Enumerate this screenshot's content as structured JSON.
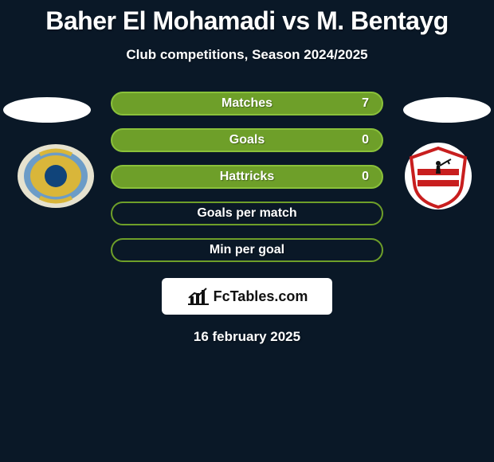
{
  "title": "Baher El Mohamadi vs M. Bentayg",
  "subtitle": "Club competitions, Season 2024/2025",
  "date": "16 february 2025",
  "watermark": {
    "text": "FcTables.com"
  },
  "colors": {
    "fill_right": "#6e9f29",
    "border_right": "#8ac13a",
    "bg_empty": "#0a1827",
    "border_empty": "#6e9f29"
  },
  "stats": [
    {
      "label": "Matches",
      "value_right": "7",
      "fill_right_pct": 100,
      "show_empty_style": false
    },
    {
      "label": "Goals",
      "value_right": "0",
      "fill_right_pct": 100,
      "show_empty_style": false
    },
    {
      "label": "Hattricks",
      "value_right": "0",
      "fill_right_pct": 100,
      "show_empty_style": false
    },
    {
      "label": "Goals per match",
      "value_right": "",
      "fill_right_pct": 0,
      "show_empty_style": true
    },
    {
      "label": "Min per goal",
      "value_right": "",
      "fill_right_pct": 0,
      "show_empty_style": true
    }
  ]
}
